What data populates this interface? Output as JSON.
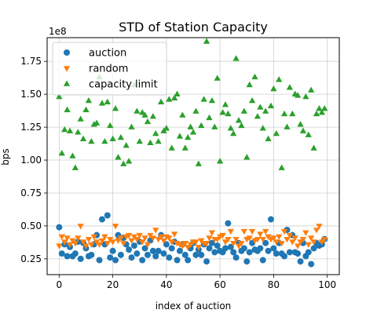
{
  "chart_data": {
    "type": "scatter",
    "title": "STD of Station Capacity",
    "xlabel": "index of auction",
    "ylabel": "bps",
    "offset_label": "1e8",
    "xlim": [
      -4.5,
      104.5
    ],
    "ylim": [
      0.13,
      1.93
    ],
    "xticks": [
      0,
      20,
      40,
      60,
      80,
      100
    ],
    "xtick_labels": [
      "0",
      "20",
      "40",
      "60",
      "80",
      "100"
    ],
    "yticks": [
      0.25,
      0.5,
      0.75,
      1.0,
      1.25,
      1.5,
      1.75
    ],
    "ytick_labels": [
      "0.25",
      "0.50",
      "0.75",
      "1.00",
      "1.25",
      "1.50",
      "1.75"
    ],
    "grid": true,
    "legend_position": "upper-left",
    "series": [
      {
        "name": "auction",
        "marker": "circle",
        "color": "#1f77b4",
        "x": [
          0,
          1,
          2,
          3,
          4,
          5,
          6,
          7,
          8,
          9,
          10,
          11,
          12,
          13,
          14,
          15,
          16,
          17,
          18,
          19,
          20,
          21,
          22,
          23,
          24,
          25,
          26,
          27,
          28,
          29,
          30,
          31,
          32,
          33,
          34,
          35,
          36,
          37,
          38,
          39,
          40,
          41,
          42,
          43,
          44,
          45,
          46,
          47,
          48,
          49,
          50,
          51,
          52,
          53,
          54,
          55,
          56,
          57,
          58,
          59,
          60,
          61,
          62,
          63,
          64,
          65,
          66,
          67,
          68,
          69,
          70,
          71,
          72,
          73,
          74,
          75,
          76,
          77,
          78,
          79,
          80,
          81,
          82,
          83,
          84,
          85,
          86,
          87,
          88,
          89,
          90,
          91,
          92,
          93,
          94,
          95,
          96,
          97,
          98,
          99
        ],
        "y": [
          0.49,
          0.29,
          0.36,
          0.27,
          0.34,
          0.27,
          0.29,
          0.38,
          0.25,
          0.37,
          0.33,
          0.27,
          0.28,
          0.36,
          0.43,
          0.24,
          0.55,
          0.36,
          0.58,
          0.26,
          0.31,
          0.24,
          0.43,
          0.28,
          0.41,
          0.36,
          0.32,
          0.26,
          0.35,
          0.29,
          0.38,
          0.24,
          0.33,
          0.28,
          0.39,
          0.31,
          0.27,
          0.31,
          0.43,
          0.29,
          0.36,
          0.26,
          0.33,
          0.38,
          0.24,
          0.31,
          0.36,
          0.28,
          0.24,
          0.33,
          0.37,
          0.28,
          0.32,
          0.28,
          0.36,
          0.23,
          0.33,
          0.37,
          0.3,
          0.35,
          0.31,
          0.3,
          0.33,
          0.52,
          0.34,
          0.3,
          0.26,
          0.37,
          0.31,
          0.33,
          0.23,
          0.3,
          0.37,
          0.32,
          0.31,
          0.33,
          0.24,
          0.37,
          0.31,
          0.55,
          0.33,
          0.29,
          0.37,
          0.29,
          0.27,
          0.47,
          0.3,
          0.43,
          0.3,
          0.29,
          0.23,
          0.37,
          0.27,
          0.3,
          0.21,
          0.33,
          0.37,
          0.35,
          0.36,
          0.4
        ]
      },
      {
        "name": "random",
        "marker": "triangle-down",
        "color": "#ff7f0e",
        "x": [
          0,
          1,
          2,
          3,
          4,
          5,
          6,
          7,
          8,
          9,
          10,
          11,
          12,
          13,
          14,
          15,
          16,
          17,
          18,
          19,
          20,
          21,
          22,
          23,
          24,
          25,
          26,
          27,
          28,
          29,
          30,
          31,
          32,
          33,
          34,
          35,
          36,
          37,
          38,
          39,
          40,
          41,
          42,
          43,
          44,
          45,
          46,
          47,
          48,
          49,
          50,
          51,
          52,
          53,
          54,
          55,
          56,
          57,
          58,
          59,
          60,
          61,
          62,
          63,
          64,
          65,
          66,
          67,
          68,
          69,
          70,
          71,
          72,
          73,
          74,
          75,
          76,
          77,
          78,
          79,
          80,
          81,
          82,
          83,
          84,
          85,
          86,
          87,
          88,
          89,
          90,
          91,
          92,
          93,
          94,
          95,
          96,
          97,
          98,
          99
        ],
        "y": [
          0.35,
          0.42,
          0.38,
          0.41,
          0.36,
          0.39,
          0.37,
          0.41,
          0.5,
          0.38,
          0.35,
          0.4,
          0.36,
          0.42,
          0.38,
          0.36,
          0.39,
          0.42,
          0.37,
          0.4,
          0.38,
          0.5,
          0.39,
          0.41,
          0.37,
          0.42,
          0.43,
          0.39,
          0.42,
          0.4,
          0.43,
          0.38,
          0.41,
          0.36,
          0.43,
          0.41,
          0.47,
          0.4,
          0.42,
          0.39,
          0.42,
          0.41,
          0.38,
          0.44,
          0.37,
          0.36,
          0.35,
          0.37,
          0.34,
          0.36,
          0.38,
          0.38,
          0.34,
          0.39,
          0.37,
          0.37,
          0.41,
          0.45,
          0.4,
          0.4,
          0.42,
          0.43,
          0.38,
          0.4,
          0.46,
          0.37,
          0.4,
          0.35,
          0.37,
          0.46,
          0.4,
          0.41,
          0.46,
          0.39,
          0.4,
          0.44,
          0.4,
          0.46,
          0.42,
          0.4,
          0.41,
          0.38,
          0.42,
          0.37,
          0.46,
          0.4,
          0.43,
          0.38,
          0.41,
          0.35,
          0.38,
          0.4,
          0.45,
          0.36,
          0.41,
          0.38,
          0.47,
          0.5,
          0.38,
          0.4
        ]
      },
      {
        "name": "capacity limit",
        "marker": "triangle-up",
        "color": "#2ca02c",
        "x": [
          0,
          1,
          2,
          3,
          4,
          5,
          6,
          7,
          8,
          9,
          10,
          11,
          12,
          13,
          14,
          15,
          16,
          17,
          18,
          19,
          20,
          21,
          22,
          23,
          24,
          25,
          26,
          27,
          28,
          29,
          30,
          31,
          32,
          33,
          34,
          35,
          36,
          37,
          38,
          39,
          40,
          41,
          42,
          43,
          44,
          45,
          46,
          47,
          48,
          49,
          50,
          51,
          52,
          53,
          54,
          55,
          56,
          57,
          58,
          59,
          60,
          61,
          62,
          63,
          64,
          65,
          66,
          67,
          68,
          69,
          70,
          71,
          72,
          73,
          74,
          75,
          76,
          77,
          78,
          79,
          80,
          81,
          82,
          83,
          84,
          85,
          86,
          87,
          88,
          89,
          90,
          91,
          92,
          93,
          94,
          95,
          96,
          97,
          98,
          99
        ],
        "y": [
          1.48,
          1.05,
          1.23,
          1.38,
          1.22,
          1.03,
          0.94,
          1.21,
          1.31,
          1.16,
          1.38,
          1.45,
          1.14,
          1.27,
          1.28,
          1.63,
          1.43,
          1.14,
          1.44,
          1.26,
          1.16,
          1.39,
          1.02,
          1.17,
          0.97,
          1.11,
          0.99,
          1.25,
          1.57,
          1.37,
          1.14,
          1.36,
          1.34,
          1.29,
          1.13,
          1.33,
          1.2,
          1.14,
          1.44,
          1.22,
          1.24,
          1.46,
          1.09,
          1.47,
          1.5,
          1.18,
          1.34,
          1.09,
          1.17,
          1.25,
          1.21,
          1.37,
          0.97,
          1.26,
          1.46,
          1.9,
          1.32,
          1.45,
          1.25,
          1.62,
          0.99,
          1.36,
          1.42,
          1.35,
          1.24,
          1.2,
          1.77,
          1.3,
          1.26,
          1.37,
          1.02,
          1.57,
          1.45,
          1.63,
          1.33,
          1.4,
          1.24,
          1.37,
          1.16,
          1.41,
          1.54,
          1.2,
          1.61,
          0.94,
          1.35,
          1.25,
          1.55,
          1.35,
          1.5,
          1.49,
          1.27,
          1.22,
          1.48,
          1.19,
          1.53,
          1.09,
          1.35,
          1.39,
          1.36,
          1.39
        ]
      }
    ]
  }
}
